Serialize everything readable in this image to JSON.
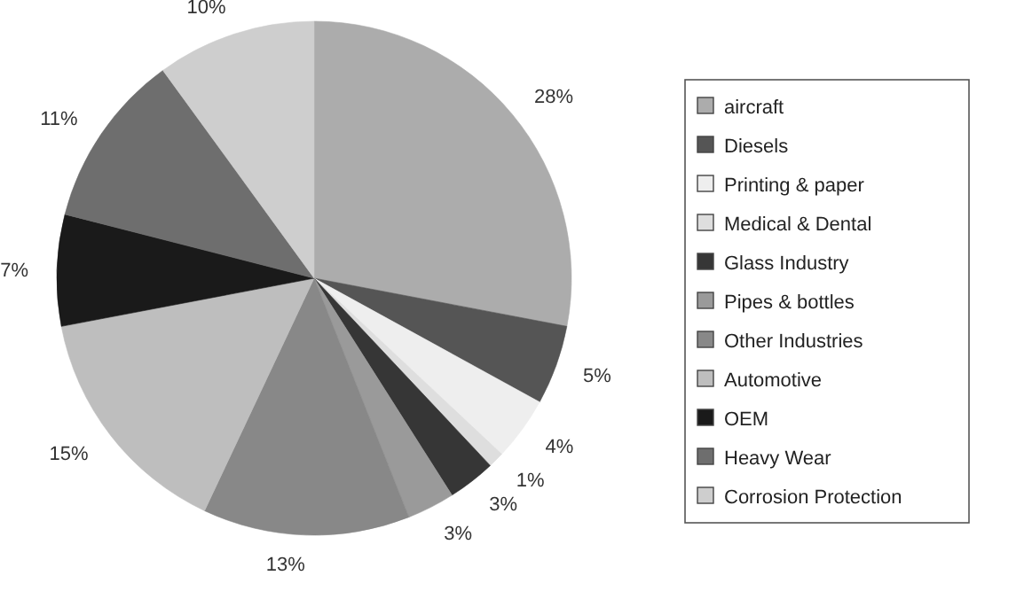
{
  "chart_data": {
    "type": "pie",
    "categories": [
      "aircraft",
      "Diesels",
      "Printing & paper",
      "Medical & Dental",
      "Glass Industry",
      "Pipes & bottles",
      "Other Industries",
      "Automotive",
      "OEM",
      "Heavy Wear",
      "Corrosion Protection"
    ],
    "values": [
      28,
      5,
      4,
      1,
      3,
      3,
      13,
      15,
      7,
      11,
      10
    ],
    "colors": [
      "#acacac",
      "#555555",
      "#eeeeee",
      "#dedede",
      "#363636",
      "#9a9a9a",
      "#888888",
      "#bebebe",
      "#1a1a1a",
      "#6e6e6e",
      "#cecece"
    ],
    "value_labels": [
      "28%",
      "5%",
      "4%",
      "1%",
      "3%",
      "3%",
      "13%",
      "15%",
      "7%",
      "11%",
      "10%"
    ],
    "legend": "right"
  }
}
